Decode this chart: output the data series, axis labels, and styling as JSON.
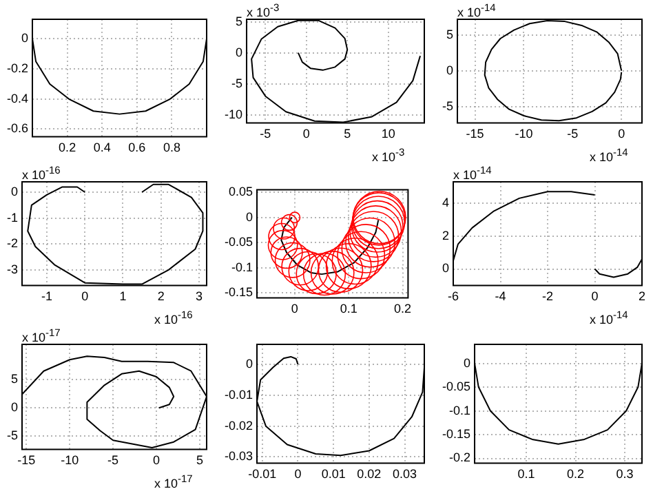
{
  "chart_data": [
    {
      "type": "line",
      "grid": true,
      "marker": "none",
      "xlim": [
        0,
        1
      ],
      "ylim": [
        -0.65,
        0.13
      ],
      "xticks": [
        0.2,
        0.4,
        0.6,
        0.8
      ],
      "yticks": [
        0,
        -0.2,
        -0.4,
        -0.6
      ],
      "series": [
        {
          "color": "#000000",
          "x": [
            0,
            0.02,
            0.1,
            0.21,
            0.35,
            0.5,
            0.65,
            0.79,
            0.9,
            0.98,
            1
          ],
          "values": [
            0,
            -0.15,
            -0.3,
            -0.4,
            -0.48,
            -0.5,
            -0.48,
            -0.4,
            -0.3,
            -0.15,
            0
          ]
        }
      ]
    },
    {
      "type": "line",
      "grid": true,
      "marker": "none",
      "xlabel": "x 10$^{-3}$",
      "ylabel": "x 10$^{-3}$",
      "xlim": [
        -7.3,
        14.4
      ],
      "ylim": [
        -11.3,
        5.4
      ],
      "xticks": [
        -5,
        0,
        5,
        10
      ],
      "yticks": [
        5,
        0,
        -5,
        -10
      ],
      "series": [
        {
          "color": "#000000",
          "x": [
            -1,
            -0.5,
            0.5,
            2,
            3.5,
            4.7,
            5,
            4.7,
            3.5,
            1.5,
            -1,
            -3.5,
            -5.5,
            -6.7,
            -6.5,
            -5,
            -2.5,
            1,
            4.5,
            8,
            11,
            13,
            13.9
          ],
          "values": [
            0,
            -1.5,
            -2.5,
            -2.8,
            -2.3,
            -1,
            0.5,
            2.3,
            4,
            5.2,
            5.2,
            4.2,
            2.2,
            -1,
            -4,
            -7,
            -9.5,
            -11,
            -11.2,
            -10.3,
            -8,
            -4.5,
            -0.5
          ]
        }
      ]
    },
    {
      "type": "line",
      "grid": true,
      "marker": "none",
      "xlabel": "x 10$^{-14}$",
      "ylabel": "x 10$^{-14}$",
      "xlim": [
        -16.8,
        2.1
      ],
      "ylim": [
        -7.3,
        7.2
      ],
      "xticks": [
        -15,
        -10,
        -5,
        0
      ],
      "yticks": [
        5,
        0,
        -5
      ],
      "series": [
        {
          "color": "#000000",
          "x": [
            0,
            -0.4,
            -1.3,
            -2.5,
            -4,
            -5.8,
            -7.6,
            -9.4,
            -11,
            -12.4,
            -13.3,
            -13.9,
            -14,
            -13.6,
            -12.7,
            -11.5,
            -10,
            -8.2,
            -6.4,
            -4.6,
            -3,
            -1.6,
            -0.7,
            -0.1,
            0
          ],
          "values": [
            0,
            2.4,
            4,
            5.4,
            6.3,
            6.9,
            7,
            6.6,
            5.7,
            4.5,
            3,
            1.2,
            -0.6,
            -2.4,
            -4,
            -5.4,
            -6.3,
            -6.9,
            -7,
            -6.6,
            -5.7,
            -4.5,
            -3,
            -1.2,
            -0.2
          ]
        }
      ]
    },
    {
      "type": "line",
      "grid": true,
      "marker": "none",
      "xlabel": "x 10$^{-16}$",
      "ylabel": "x 10$^{-16}$",
      "xlim": [
        -1.65,
        3.2
      ],
      "ylim": [
        -3.6,
        0.4
      ],
      "xticks": [
        -1,
        0,
        1,
        2,
        3
      ],
      "yticks": [
        0,
        -1,
        -2,
        -3
      ],
      "series": [
        {
          "color": "#000000",
          "x": [
            0,
            -0.2,
            -0.6,
            -1,
            -1.4,
            -1.5,
            -1.3,
            -0.8,
            0,
            1,
            1.5,
            2.2,
            2.9,
            3.1,
            3.1,
            2.8,
            2.2,
            1.8,
            1.5
          ],
          "values": [
            0,
            0.2,
            0.2,
            -0.1,
            -0.5,
            -1.5,
            -2.1,
            -2.8,
            -3.5,
            -3.55,
            -3.55,
            -3,
            -2.2,
            -1.5,
            -0.8,
            -0.2,
            0.3,
            0.3,
            0
          ]
        }
      ]
    },
    {
      "type": "line",
      "grid": true,
      "xlim": [
        -0.07,
        0.21
      ],
      "ylim": [
        -0.16,
        0.055
      ],
      "xticks": [
        0,
        0.1,
        0.2
      ],
      "yticks": [
        0.05,
        0,
        -0.05,
        -0.1,
        -0.15
      ],
      "series": [
        {
          "type": "bubble",
          "color": "#ff0000",
          "x": [
            0,
            -0.01,
            -0.02,
            -0.024,
            -0.022,
            -0.015,
            -0.004,
            0.01,
            0.025,
            0.04,
            0.055,
            0.07,
            0.085,
            0.1,
            0.112,
            0.123,
            0.132,
            0.14,
            0.146,
            0.15,
            0.153,
            0.155,
            0.156,
            0.157
          ],
          "values": [
            0,
            -0.01,
            -0.022,
            -0.038,
            -0.055,
            -0.07,
            -0.085,
            -0.098,
            -0.107,
            -0.112,
            -0.113,
            -0.11,
            -0.105,
            -0.097,
            -0.087,
            -0.075,
            -0.062,
            -0.05,
            -0.038,
            -0.028,
            -0.018,
            -0.01,
            -0.003,
            0
          ],
          "sizes": [
            0.04,
            0.09,
            0.16,
            0.25,
            0.31,
            0.36,
            0.44,
            0.49,
            0.55,
            0.58,
            0.64,
            0.67,
            0.71,
            0.74,
            0.77,
            0.81,
            0.85,
            0.88,
            0.92,
            0.96,
            0.96,
            1,
            1,
            1
          ]
        },
        {
          "color": "#000000",
          "x": [
            -0.005,
            -0.02,
            -0.025,
            -0.015,
            0.005,
            0.03,
            0.05,
            0.08,
            0.11,
            0.135,
            0.15,
            0.155
          ],
          "values": [
            0,
            -0.02,
            -0.045,
            -0.07,
            -0.095,
            -0.11,
            -0.113,
            -0.108,
            -0.09,
            -0.06,
            -0.03,
            -0.005
          ]
        }
      ]
    },
    {
      "type": "line",
      "grid": true,
      "marker": "none",
      "xlabel": "x 10$^{-14}$",
      "ylabel": "x 10$^{-14}$",
      "xlim": [
        -6,
        2
      ],
      "ylim": [
        -1,
        5.3
      ],
      "xticks": [
        -6,
        -4,
        -2,
        0,
        2
      ],
      "yticks": [
        0,
        2,
        4
      ],
      "series": [
        {
          "color": "#000000",
          "x": [
            -6,
            -5.8,
            -5.2,
            -4.3,
            -3.2,
            -2,
            -1,
            0
          ],
          "values": [
            0.5,
            1.5,
            2.5,
            3.5,
            4.3,
            4.7,
            4.7,
            4.5
          ]
        },
        {
          "color": "#000000",
          "x": [
            0,
            0.2,
            0.8,
            1.4,
            1.8,
            2
          ],
          "values": [
            0,
            -0.3,
            -0.5,
            -0.3,
            0.1,
            0.6
          ]
        }
      ]
    },
    {
      "type": "line",
      "grid": true,
      "marker": "none",
      "xlabel": "x 10$^{-17}$",
      "ylabel": "x 10$^{-17}$",
      "xlim": [
        -15.5,
        5.8
      ],
      "ylim": [
        -7.3,
        11.2
      ],
      "xticks": [
        -15,
        -10,
        -5,
        0,
        5
      ],
      "yticks": [
        5,
        0,
        -5
      ],
      "series": [
        {
          "color": "#000000",
          "x": [
            0.3,
            1.5,
            2,
            1.5,
            0,
            -2,
            -4,
            -6,
            -8,
            -8,
            -6.5,
            -5,
            -0.5,
            2,
            4.5,
            5.8,
            4,
            2,
            -1,
            -4,
            -6,
            -8,
            -10,
            -13,
            -15.5
          ],
          "values": [
            0,
            0.6,
            2,
            3.6,
            5.5,
            6.5,
            6,
            4,
            1,
            -2,
            -4,
            -5.7,
            -7,
            -6,
            -3.8,
            2,
            6.5,
            8,
            8.2,
            8.2,
            8.9,
            9.1,
            8.5,
            6.5,
            2.4
          ]
        }
      ]
    },
    {
      "type": "line",
      "grid": true,
      "marker": "none",
      "xlim": [
        -0.0115,
        0.0355
      ],
      "ylim": [
        -0.032,
        0.0065
      ],
      "xticks": [
        -0.01,
        0,
        0.01,
        0.02,
        0.03
      ],
      "yticks": [
        0,
        -0.01,
        -0.02,
        -0.03
      ],
      "series": [
        {
          "color": "#000000",
          "x": [
            0,
            -0.0005,
            -0.002,
            -0.004,
            -0.007,
            -0.0105,
            -0.0115,
            -0.009,
            -0.003,
            0.005,
            0.012,
            0.02,
            0.027,
            0.032,
            0.035,
            0.0355
          ],
          "values": [
            0,
            0.0018,
            0.0025,
            0.002,
            -0.001,
            -0.005,
            -0.012,
            -0.02,
            -0.026,
            -0.029,
            -0.0295,
            -0.028,
            -0.024,
            -0.017,
            -0.009,
            -0.001
          ]
        }
      ]
    },
    {
      "type": "line",
      "grid": true,
      "marker": "none",
      "xlim": [
        -0.005,
        0.335
      ],
      "ylim": [
        -0.21,
        0.04
      ],
      "xticks": [
        0.1,
        0.2,
        0.3
      ],
      "yticks": [
        0,
        -0.05,
        -0.1,
        -0.15,
        -0.2
      ],
      "series": [
        {
          "color": "#000000",
          "x": [
            -0.005,
            0.003,
            0.027,
            0.065,
            0.112,
            0.165,
            0.218,
            0.265,
            0.303,
            0.327,
            0.335
          ],
          "values": [
            0,
            -0.05,
            -0.1,
            -0.14,
            -0.16,
            -0.17,
            -0.16,
            -0.14,
            -0.1,
            -0.05,
            0
          ]
        }
      ]
    }
  ]
}
